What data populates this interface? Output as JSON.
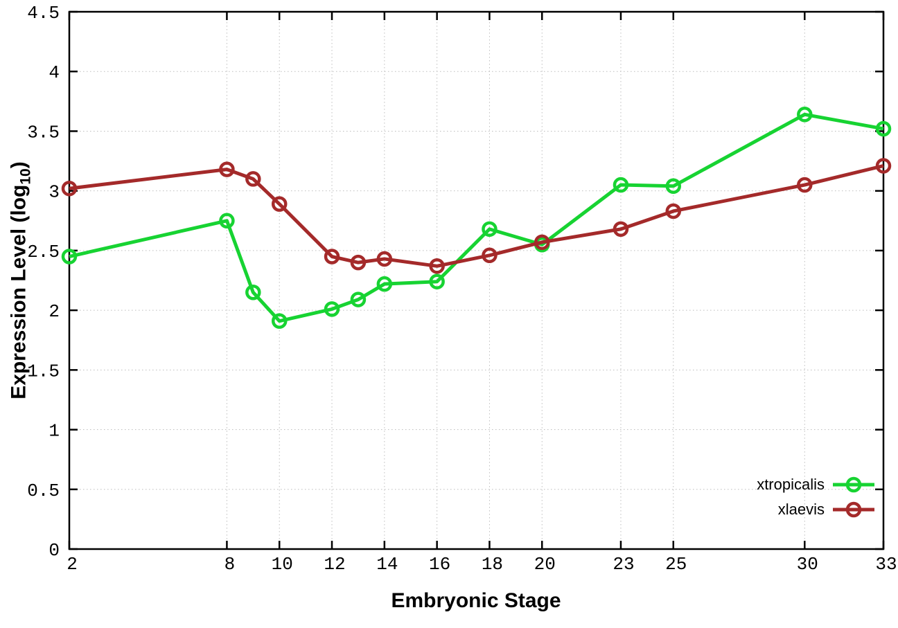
{
  "chart_data": {
    "type": "line",
    "title": "",
    "xlabel": "Embryonic Stage",
    "ylabel": "Expression Level (log10)",
    "ylabel_parts": {
      "main": "Expression Level (log",
      "sub": "10",
      "suffix": ")"
    },
    "x": [
      2,
      8,
      9,
      10,
      12,
      13,
      14,
      16,
      18,
      20,
      23,
      25,
      30,
      33
    ],
    "series": [
      {
        "name": "xtropicalis",
        "color": "#17d332",
        "values": [
          2.45,
          2.75,
          2.15,
          1.91,
          2.01,
          2.09,
          2.22,
          2.24,
          2.68,
          2.55,
          3.05,
          3.04,
          3.64,
          3.52
        ]
      },
      {
        "name": "xlaevis",
        "color": "#a42a2a",
        "values": [
          3.02,
          3.18,
          3.1,
          2.89,
          2.45,
          2.4,
          2.43,
          2.37,
          2.46,
          2.57,
          2.68,
          2.83,
          3.05,
          3.21
        ]
      }
    ],
    "xlim": [
      2,
      33
    ],
    "ylim": [
      0,
      4.5
    ],
    "x_ticks": [
      2,
      8,
      10,
      12,
      14,
      16,
      18,
      20,
      23,
      25,
      30,
      33
    ],
    "y_ticks": [
      0,
      0.5,
      1,
      1.5,
      2,
      2.5,
      3,
      3.5,
      4,
      4.5
    ],
    "grid": "dotted",
    "legend_position": "bottom-right",
    "colors": {
      "background": "#ffffff",
      "grid": "#bdbdbd",
      "axis": "#000000",
      "text": "#000000"
    }
  }
}
